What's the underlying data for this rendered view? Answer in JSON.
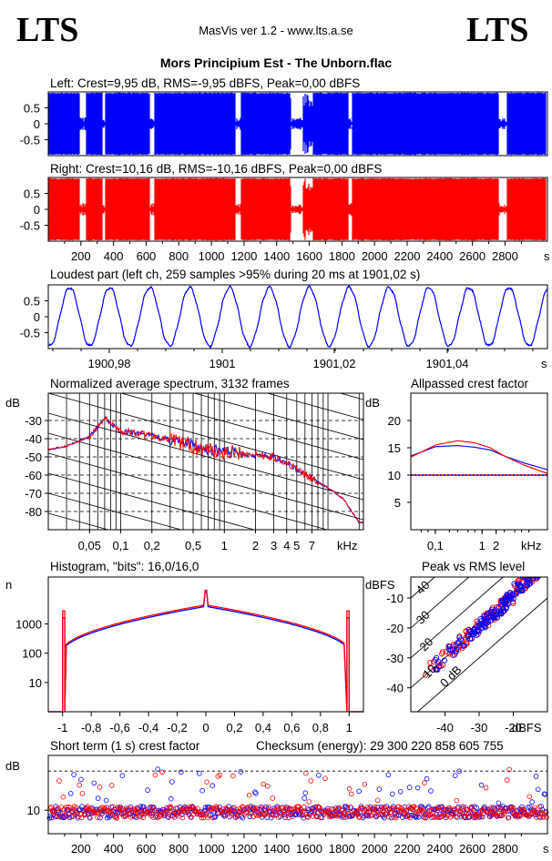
{
  "header": {
    "logo_left": "LTS",
    "logo_right": "LTS",
    "app": "MasVis ver 1.2 - www.lts.a.se",
    "file": "Mors Principium Est - The Unborn.flac"
  },
  "colors": {
    "left": "#0000ff",
    "right": "#ff0000"
  },
  "chart_data": [
    {
      "id": "left",
      "type": "area",
      "title": "Left: Crest=9,95 dB, RMS=-9,95 dBFS, Peak=0,00 dBFS",
      "ylim": [
        -1,
        1
      ],
      "yticks": [
        "0.5",
        "0",
        "-0.5"
      ],
      "xlim": [
        0,
        3060
      ],
      "quiet_sections_s": [
        [
          190,
          230
        ],
        [
          330,
          350
        ],
        [
          620,
          650
        ],
        [
          1150,
          1180
        ],
        [
          1490,
          1560
        ],
        [
          1840,
          1860
        ],
        [
          2760,
          2810
        ]
      ]
    },
    {
      "id": "right",
      "type": "area",
      "title": "Right: Crest=10,16 dB, RMS=-10,16 dBFS, Peak=0,00 dBFS",
      "ylim": [
        -1,
        1
      ],
      "yticks": [
        "0.5",
        "0",
        "-0.5"
      ],
      "xlim": [
        0,
        3060
      ],
      "xticks": [
        "200",
        "400",
        "600",
        "800",
        "1000",
        "1200",
        "1400",
        "1600",
        "1800",
        "2000",
        "2200",
        "2400",
        "2600",
        "2800"
      ],
      "xunit": "s"
    },
    {
      "id": "loudest",
      "type": "line",
      "title": "Loudest part (left  ch, 259 samples >95% during 20 ms at 1901,02 s)",
      "ylim": [
        -1,
        1
      ],
      "yticks": [
        "0.5",
        "0",
        "-0.5"
      ],
      "xticks": [
        "1900,98",
        "1901",
        "1901,02",
        "1901,04"
      ],
      "xunit": "s",
      "cycles": 12.5
    },
    {
      "id": "spectrum",
      "type": "line",
      "title": "Normalized average spectrum, 3132 frames",
      "ylabel": "dB",
      "ylim": [
        -90,
        -15
      ],
      "yticks": [
        -30,
        -40,
        -50,
        -60,
        -70,
        -80
      ],
      "xscale": "log",
      "xlim": [
        0.02,
        22
      ],
      "xticks": [
        "0,05",
        "0,1",
        "0,2",
        "0,5",
        "1",
        "2",
        "3",
        "4",
        "5",
        "7"
      ],
      "xticks_values": [
        0.05,
        0.1,
        0.2,
        0.5,
        1,
        2,
        3,
        4,
        5,
        7
      ],
      "xunit": "kHz",
      "series": [
        {
          "x": [
            0.02,
            0.03,
            0.05,
            0.07,
            0.1,
            0.15,
            0.2,
            0.3,
            0.5,
            0.7,
            1,
            1.5,
            2,
            3,
            4,
            5,
            7,
            10,
            14,
            20
          ],
          "y": [
            -46,
            -44,
            -39,
            -29,
            -36,
            -37,
            -38,
            -41,
            -44,
            -46,
            -47,
            -48,
            -49,
            -50,
            -53,
            -57,
            -62,
            -67,
            -73,
            -86
          ]
        }
      ]
    },
    {
      "id": "crest",
      "type": "line",
      "title": "Allpassed crest factor",
      "ylabel": "dB",
      "ylim": [
        0,
        25
      ],
      "yticks": [
        20,
        15,
        10,
        5
      ],
      "xscale": "log",
      "xlim": [
        0.03,
        25
      ],
      "xticks": [
        "0,1",
        "1",
        "2"
      ],
      "xticks_values": [
        0.1,
        1,
        2
      ],
      "xunit": "kHz",
      "reference_db": 10,
      "series": [
        {
          "x": [
            0.03,
            0.1,
            0.3,
            0.7,
            1.5,
            3,
            8,
            25
          ],
          "y": [
            13.5,
            15.2,
            15.4,
            15.1,
            14.6,
            13.5,
            12.2,
            11
          ]
        },
        {
          "x": [
            0.03,
            0.1,
            0.3,
            0.7,
            1.5,
            3,
            8,
            25
          ],
          "y": [
            13.3,
            15.5,
            16.3,
            15.9,
            15,
            13.5,
            11.8,
            10.3
          ]
        }
      ]
    },
    {
      "id": "histogram",
      "type": "line",
      "title": "Histogram, \"bits\": 16,0/16,0",
      "ylabel": "n",
      "yscale": "log",
      "ylim": [
        1,
        40000
      ],
      "yticks": [
        "1000",
        "100",
        "10"
      ],
      "xlim": [
        -1.1,
        1.1
      ],
      "xticks": [
        "-1",
        "-0,8",
        "-0,6",
        "-0,4",
        "-0,2",
        "0",
        "0,2",
        "0,4",
        "0,6",
        "0,8",
        "1"
      ]
    },
    {
      "id": "peak_rms",
      "type": "scatter",
      "title": "Peak vs RMS level",
      "ylabel": "dBFS",
      "xlabel": "dBFS",
      "yticks": [
        "-10",
        "-20",
        "-30",
        "-40"
      ],
      "xticks": [
        "-40",
        "-30",
        "-20"
      ],
      "crest_lines": [
        "40",
        "30",
        "20",
        "10",
        "0 dB"
      ]
    },
    {
      "id": "short_term",
      "type": "scatter",
      "title": "Short term (1 s) crest factor",
      "checksum": "Checksum (energy):  29 300 220 858 605 755",
      "ylabel": "dB",
      "yticks": [
        "10"
      ],
      "xticks": [
        "200",
        "400",
        "600",
        "800",
        "1000",
        "1200",
        "1400",
        "1600",
        "1800",
        "2000",
        "2200",
        "2400",
        "2600",
        "2800"
      ],
      "xunit": "s"
    }
  ]
}
